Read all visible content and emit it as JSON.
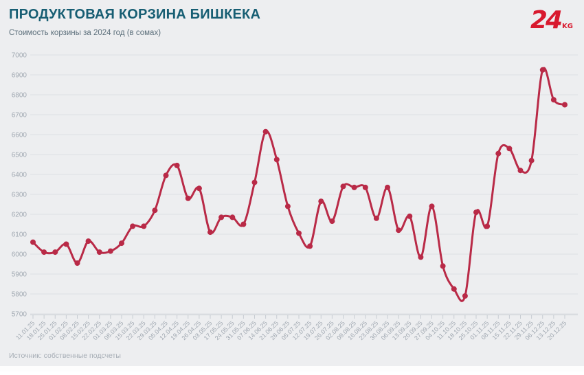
{
  "header": {
    "title": "ПРОДУКТОВАЯ КОРЗИНА БИШКЕКА",
    "subtitle": "Стоимость корзины за 2024 год (в сомах)"
  },
  "logo": {
    "number": "24",
    "suffix": "KG"
  },
  "footer": {
    "source": "Источник: собственные подсчеты"
  },
  "colors": {
    "background": "#edeef0",
    "title": "#175e73",
    "subtitle": "#5c6f7b",
    "line": "#b92a47",
    "logo_red": "#d8192e",
    "gridline": "#dde0e4",
    "axis": "#c7ccd2",
    "tick_label": "#a0a8b1",
    "footer_text": "#a6adb5"
  },
  "chart_data": {
    "type": "line",
    "title": "Продуктовая корзина Бишкека",
    "subtitle": "Стоимость корзины за 2024 год (в сомах)",
    "xlabel": "",
    "ylabel": "",
    "legend_position": "none",
    "grid": true,
    "ylim": [
      5700,
      7000
    ],
    "yticks": [
      5700,
      5800,
      5900,
      6000,
      6100,
      6200,
      6300,
      6400,
      6500,
      6600,
      6700,
      6800,
      6900,
      7000
    ],
    "x": [
      "11.01.25",
      "18.01.25",
      "25.01.25",
      "01.02.25",
      "08.02.25",
      "15.02.25",
      "22.02.25",
      "01.03.25",
      "08.03.25",
      "15.03.25",
      "22.03.25",
      "29.03.25",
      "05.04.25",
      "12.04.25",
      "19.04.25",
      "26.04.25",
      "03.05.25",
      "17.05.25",
      "24.05.25",
      "31.05.25",
      "07.06.25",
      "14.06.25",
      "21.06.25",
      "28.06.25",
      "05.07.25",
      "12.07.25",
      "19.07.25",
      "26.07.25",
      "02.08.25",
      "09.08.25",
      "16.08.25",
      "23.08.25",
      "30.08.25",
      "06.09.25",
      "13.09.25",
      "20.09.25",
      "27.09.25",
      "04.10.25",
      "11.10.25",
      "18.10.25",
      "25.10.25",
      "01.11.25",
      "08.11.25",
      "15.11.25",
      "22.11.25",
      "29.11.25",
      "06.12.25",
      "13.12.25",
      "20.12.25"
    ],
    "series": [
      {
        "name": "Стоимость корзины (сом)",
        "values": [
          6060,
          6010,
          6010,
          6050,
          5955,
          6065,
          6010,
          6015,
          6055,
          6140,
          6140,
          6220,
          6395,
          6445,
          6280,
          6330,
          6110,
          6185,
          6185,
          6150,
          6360,
          6615,
          6475,
          6240,
          6105,
          6040,
          6265,
          6165,
          6340,
          6335,
          6335,
          6180,
          6335,
          6120,
          6190,
          5985,
          6240,
          5940,
          5825,
          5790,
          6210,
          6140,
          6505,
          6530,
          6420,
          6470,
          6925,
          6775,
          6750
        ]
      }
    ]
  }
}
